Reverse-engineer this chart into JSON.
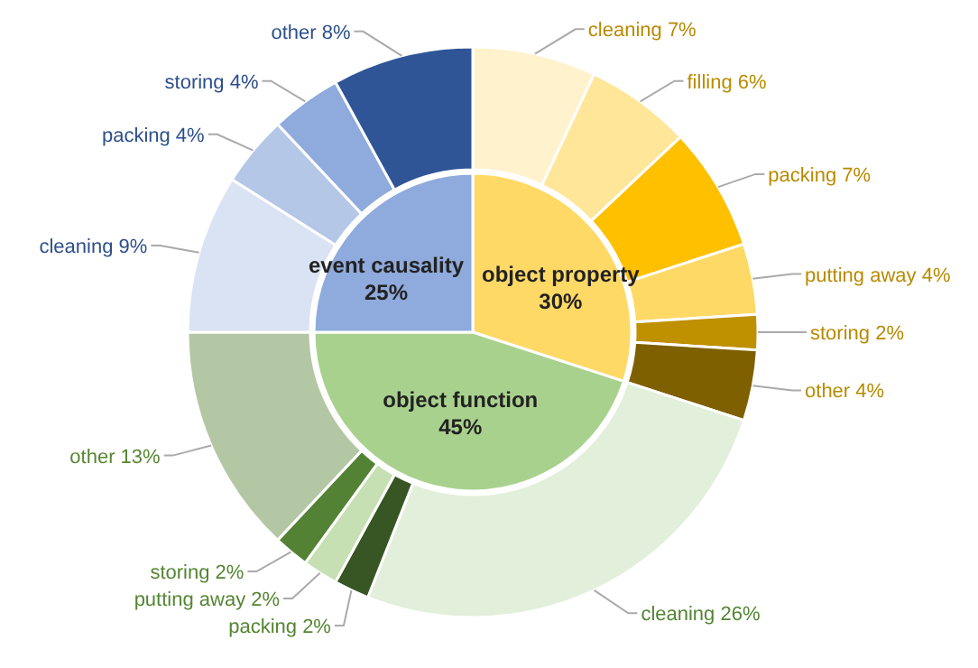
{
  "chart_data": [
    {
      "type": "pie",
      "categories": [
        "object property",
        "object function",
        "event causality"
      ],
      "values": [
        30,
        45,
        25
      ],
      "value_labels": [
        "30%",
        "45%",
        "25%"
      ],
      "colors": [
        "#ffd966",
        "#a9d18e",
        "#8faadc"
      ]
    },
    {
      "type": "donut",
      "categories": [
        "cleaning",
        "filling",
        "packing",
        "putting away",
        "storing",
        "other",
        "cleaning",
        "packing",
        "putting away",
        "storing",
        "other",
        "cleaning",
        "packing",
        "storing",
        "other"
      ],
      "values": [
        7,
        6,
        7,
        4,
        2,
        4,
        26,
        2,
        2,
        2,
        13,
        9,
        4,
        4,
        8
      ],
      "value_labels": [
        "7%",
        "6%",
        "7%",
        "4%",
        "2%",
        "4%",
        "26%",
        "2%",
        "2%",
        "2%",
        "13%",
        "9%",
        "4%",
        "4%",
        "8%"
      ],
      "colors": [
        "#fff2cc",
        "#ffe699",
        "#ffc000",
        "#ffd966",
        "#bf9000",
        "#7f6000",
        "#e2efda",
        "#375623",
        "#c6e0b4",
        "#548235",
        "#b4c7a4",
        "#dae3f3",
        "#b4c7e7",
        "#8faadc",
        "#2f5597"
      ]
    }
  ]
}
